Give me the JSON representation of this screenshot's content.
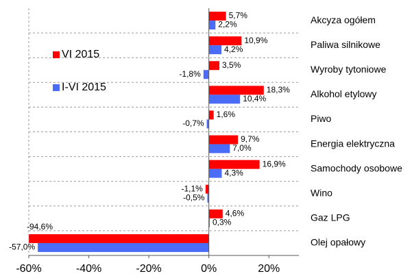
{
  "chart_data": {
    "type": "hbar",
    "categories": [
      "Akcyza ogółem",
      "Paliwa silnikowe",
      "Wyroby tytoniowe",
      "Alkohol etylowy",
      "Piwo",
      "Energia elektryczna",
      "Samochody osobowe",
      "Wino",
      "Gaz LPG",
      "Olej opałowy"
    ],
    "series": [
      {
        "name": "VI 2015",
        "color": "#ff0000",
        "values": [
          5.7,
          10.9,
          3.5,
          18.3,
          1.6,
          9.7,
          16.9,
          -1.1,
          4.6,
          -94.6
        ],
        "value_labels": [
          "5,7%",
          "10,9%",
          "3,5%",
          "18,3%",
          "1,6%",
          "9,7%",
          "16,9%",
          "-1,1%",
          "4,6%",
          "-94,6%"
        ]
      },
      {
        "name": "I-VI 2015",
        "color": "#4a6cf7",
        "values": [
          2.2,
          4.2,
          -1.8,
          10.4,
          -0.7,
          7.0,
          4.3,
          -0.5,
          0.3,
          -57.0
        ],
        "value_labels": [
          "2,2%",
          "4,2%",
          "-1,8%",
          "10,4%",
          "-0,7%",
          "7,0%",
          "4,3%",
          "-0,5%",
          "0,3%",
          "-57,0%"
        ]
      }
    ],
    "xlim": [
      -60,
      30
    ],
    "xticks": [
      {
        "value": -60,
        "label": "-60%"
      },
      {
        "value": -40,
        "label": "-40%"
      },
      {
        "value": -20,
        "label": "-20%"
      },
      {
        "value": 0,
        "label": "0%"
      },
      {
        "value": 20,
        "label": "20%"
      }
    ],
    "legend": "upper left"
  }
}
